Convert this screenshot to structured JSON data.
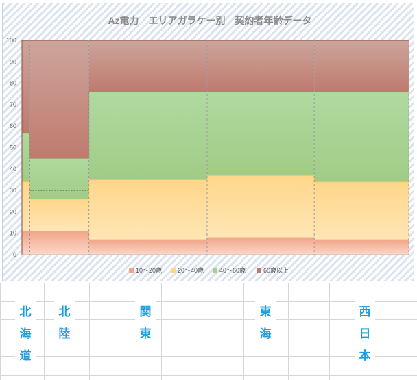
{
  "chart_data": {
    "type": "area",
    "title": "Az電力　エリアガラケー別　契約者年齢データ",
    "ylim": [
      0,
      100
    ],
    "yticks": [
      "0",
      "10",
      "20",
      "30",
      "40",
      "50",
      "60",
      "70",
      "80",
      "90",
      "100"
    ],
    "categories": [
      "北海道",
      "北陸",
      "関東",
      "東海",
      "西日本"
    ],
    "category_widths": [
      1.0,
      7.5,
      15.0,
      13.6,
      12.0
    ],
    "series": [
      {
        "name": "10～20歳",
        "color": "#f2a488",
        "values": [
          11,
          11,
          7,
          8,
          7
        ]
      },
      {
        "name": "20～40歳",
        "color": "#ffd68a",
        "values": [
          23,
          15,
          28,
          29,
          27
        ]
      },
      {
        "name": "40～60歳",
        "color": "#a9d18e",
        "values": [
          23,
          19,
          41,
          39,
          42
        ]
      },
      {
        "name": "60歳以上",
        "color": "#c0786e",
        "values": [
          43,
          55,
          24,
          24,
          24
        ]
      }
    ],
    "legend_position": "bottom"
  },
  "sheet": {
    "labels": [
      {
        "id": "hokkaido",
        "text": "北海道"
      },
      {
        "id": "hokuriku",
        "text": "北陸"
      },
      {
        "id": "kanto",
        "text": "関東"
      },
      {
        "id": "tokai",
        "text": "東海"
      },
      {
        "id": "nishinihon",
        "text": "西日本"
      }
    ]
  }
}
